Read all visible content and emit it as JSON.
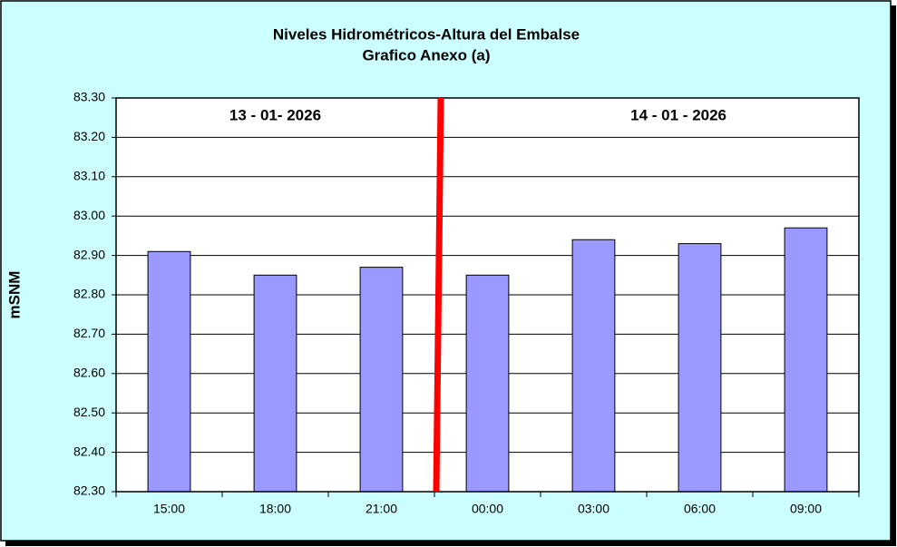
{
  "chart_data": {
    "type": "bar",
    "title": "Niveles Hidrométricos-Altura del Embalse",
    "subtitle": "Grafico Anexo (a)",
    "y_label": "mSNM",
    "annotations": [
      "13 - 01- 2026",
      "14 - 01 - 2026"
    ],
    "categories": [
      "15:00",
      "18:00",
      "21:00",
      "00:00",
      "03:00",
      "06:00",
      "09:00"
    ],
    "values": [
      82.91,
      82.85,
      82.87,
      82.85,
      82.94,
      82.93,
      82.97
    ],
    "color": "#9999ff",
    "ylim": [
      82.3,
      83.3
    ],
    "yticks": [
      {
        "value": 82.3,
        "label": "82.30"
      },
      {
        "value": 82.4,
        "label": "82.40"
      },
      {
        "value": 82.5,
        "label": "82.50"
      },
      {
        "value": 82.6,
        "label": "82.60"
      },
      {
        "value": 82.7,
        "label": "82.70"
      },
      {
        "value": 82.8,
        "label": "82.80"
      },
      {
        "value": 82.9,
        "label": "82.90"
      },
      {
        "value": 83.0,
        "label": "83.00"
      },
      {
        "value": 83.1,
        "label": "83.10"
      },
      {
        "value": 83.2,
        "label": "83.20"
      },
      {
        "value": 83.3,
        "label": "83.30"
      }
    ],
    "grid": true
  }
}
